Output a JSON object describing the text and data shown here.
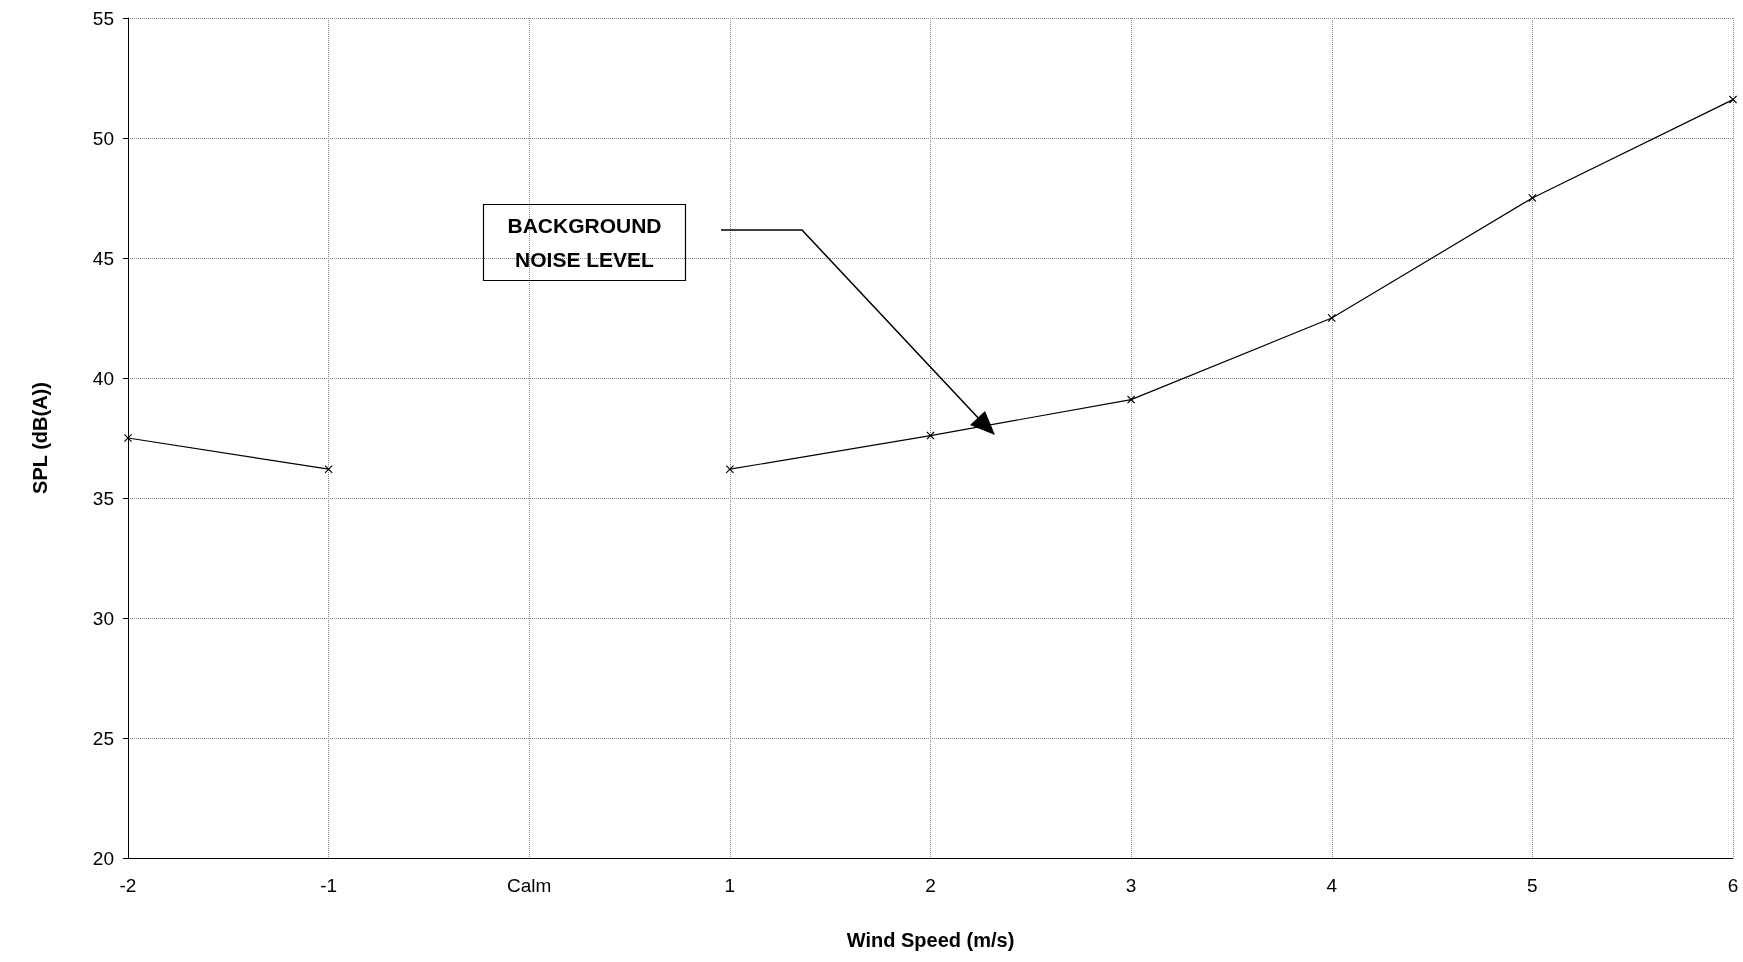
{
  "chart_data": {
    "type": "line",
    "xlabel": "Wind Speed (m/s)",
    "ylabel": "SPL (dB(A))",
    "categories": [
      "-2",
      "-1",
      "Calm",
      "1",
      "2",
      "3",
      "4",
      "5",
      "6"
    ],
    "series": [
      {
        "color": "#000000",
        "values": [
          37.5,
          36.2,
          null,
          36.2,
          37.6,
          39.1,
          42.5,
          47.5,
          51.6
        ]
      }
    ],
    "ylim": [
      20,
      55
    ],
    "yticks": [
      20,
      25,
      30,
      35,
      40,
      45,
      50,
      55
    ],
    "grid": true,
    "marker": "cross",
    "line_style": "solid",
    "annotations": [
      "BACKGROUND\nNOISE LEVEL"
    ]
  }
}
